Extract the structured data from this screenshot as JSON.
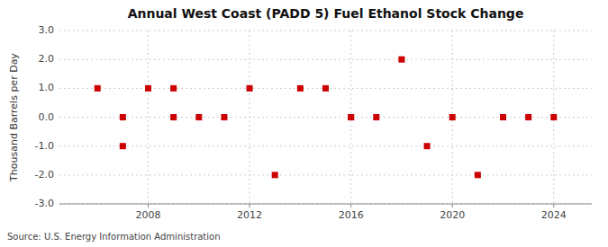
{
  "chart_data": {
    "type": "scatter",
    "title": "Annual West Coast (PADD 5) Fuel Ethanol Stock Change",
    "ylabel": "Thousand Barrels per Day",
    "source": "Source: U.S. Energy Information Administration",
    "x": [
      2006,
      2007,
      2007,
      2008,
      2009,
      2009,
      2010,
      2011,
      2012,
      2013,
      2014,
      2015,
      2016,
      2016,
      2017,
      2018,
      2019,
      2020,
      2021,
      2022,
      2022,
      2023,
      2024
    ],
    "values": [
      1.0,
      -1.0,
      0.0,
      1.0,
      1.0,
      0.0,
      0.0,
      0.0,
      1.0,
      -2.0,
      1.0,
      1.0,
      0.0,
      0.0,
      0.0,
      2.0,
      -1.0,
      0.0,
      -2.0,
      0.0,
      0.0,
      0.0,
      0.0
    ],
    "color": "#cc0000",
    "marker": "square",
    "xlim": [
      2004.5,
      2025.5
    ],
    "xticks": [
      2008,
      2012,
      2016,
      2020,
      2024
    ],
    "ylim": [
      -3.0,
      3.0
    ],
    "yticks": [
      {
        "value": -3.0,
        "label": "-3.0"
      },
      {
        "value": -2.0,
        "label": "-2.0"
      },
      {
        "value": -1.0,
        "label": "-1.0"
      },
      {
        "value": 0.0,
        "label": "0.0"
      },
      {
        "value": 1.0,
        "label": "1.0"
      },
      {
        "value": 2.0,
        "label": "2.0"
      },
      {
        "value": 3.0,
        "label": "3.0"
      }
    ],
    "grid": true
  }
}
